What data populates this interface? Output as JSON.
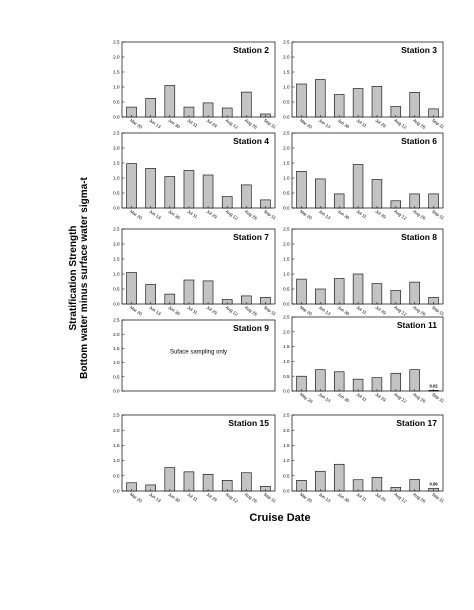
{
  "figure": {
    "ylabel_line1": "Stratification Strength",
    "ylabel_line2": "Bottom water minus surface water sigma-t",
    "xlabel": "Cruise Date"
  },
  "chart_data": [
    {
      "type": "bar",
      "title": "Station 2",
      "ylim": [
        0,
        2.5
      ],
      "yticks": [
        "0.0",
        "0.5",
        "1.0",
        "1.5",
        "2.0",
        "2.5"
      ],
      "categories": [
        "Mar 20",
        "Jun 13",
        "Jun 30",
        "Jul 11",
        "Jul 29",
        "Aug 12",
        "Aug 26",
        "Sep 11"
      ],
      "values": [
        0.33,
        0.62,
        1.05,
        0.33,
        0.47,
        0.3,
        0.83,
        0.1
      ]
    },
    {
      "type": "bar",
      "title": "Station 3",
      "ylim": [
        0,
        2.5
      ],
      "yticks": [
        "0.0",
        "0.5",
        "1.0",
        "1.5",
        "2.0",
        "2.5"
      ],
      "categories": [
        "Mar 20",
        "Jun 13",
        "Jun 30",
        "Jul 11",
        "Jul 29",
        "Aug 12",
        "Aug 26",
        "Sep 11"
      ],
      "values": [
        1.1,
        1.25,
        0.75,
        0.95,
        1.02,
        0.35,
        0.82,
        0.27
      ]
    },
    {
      "type": "bar",
      "title": "Station 4",
      "ylim": [
        0,
        2.5
      ],
      "yticks": [
        "0.0",
        "0.5",
        "1.0",
        "1.5",
        "2.0",
        "2.5"
      ],
      "categories": [
        "Mar 20",
        "Jun 13",
        "Jun 30",
        "Jul 11",
        "Jul 29",
        "Aug 12",
        "Aug 26",
        "Sep 11"
      ],
      "values": [
        1.48,
        1.32,
        1.05,
        1.25,
        1.1,
        0.38,
        0.77,
        0.27
      ]
    },
    {
      "type": "bar",
      "title": "Station 6",
      "ylim": [
        0,
        2.5
      ],
      "yticks": [
        "0.0",
        "0.5",
        "1.0",
        "1.5",
        "2.0",
        "2.5"
      ],
      "categories": [
        "Mar 20",
        "Jun 13",
        "Jun 30",
        "Jul 11",
        "Jul 29",
        "Aug 12",
        "Aug 26",
        "Sep 11"
      ],
      "values": [
        1.22,
        0.97,
        0.47,
        1.45,
        0.95,
        0.24,
        0.47,
        0.47
      ]
    },
    {
      "type": "bar",
      "title": "Station 7",
      "ylim": [
        0,
        2.5
      ],
      "yticks": [
        "0.0",
        "0.5",
        "1.0",
        "1.5",
        "2.0",
        "2.5"
      ],
      "categories": [
        "Mar 20",
        "Jun 13",
        "Jun 30",
        "Jul 11",
        "Jul 29",
        "Aug 12",
        "Aug 26",
        "Sep 11"
      ],
      "values": [
        1.05,
        0.65,
        0.33,
        0.8,
        0.77,
        0.15,
        0.27,
        0.22
      ]
    },
    {
      "type": "bar",
      "title": "Station 8",
      "ylim": [
        0,
        2.5
      ],
      "yticks": [
        "0.0",
        "0.5",
        "1.0",
        "1.5",
        "2.0",
        "2.5"
      ],
      "categories": [
        "Mar 20",
        "Jun 13",
        "Jun 30",
        "Jul 11",
        "Jul 29",
        "Aug 12",
        "Aug 26",
        "Sep 11"
      ],
      "values": [
        0.83,
        0.5,
        0.85,
        1.0,
        0.68,
        0.45,
        0.73,
        0.22
      ]
    },
    {
      "type": "bar",
      "title": "Station 9",
      "ylim": [
        0,
        2.5
      ],
      "yticks": [
        "0.0",
        "0.5",
        "1.0",
        "1.5",
        "2.0",
        "2.5"
      ],
      "categories": [],
      "values": [],
      "annotation": "Suface sampling only"
    },
    {
      "type": "bar",
      "title": "Station 11",
      "ylim": [
        0,
        2.5
      ],
      "yticks": [
        "0.0",
        "0.5",
        "1.0",
        "1.5",
        "2.0",
        "2.5"
      ],
      "categories": [
        "May 20",
        "Jun 13",
        "Jun 30",
        "Jul 11",
        "Jul 29",
        "Aug 12",
        "Aug 26",
        "Sep 11"
      ],
      "values": [
        0.5,
        0.72,
        0.65,
        0.4,
        0.45,
        0.6,
        0.72,
        0.02
      ],
      "data_labels": [
        {
          "index": 7,
          "text": "0.02"
        }
      ]
    },
    {
      "type": "bar",
      "title": "Station 15",
      "ylim": [
        0,
        2.5
      ],
      "yticks": [
        "0.0",
        "0.5",
        "1.0",
        "1.5",
        "2.0",
        "2.5"
      ],
      "categories": [
        "Mar 20",
        "Jun 13",
        "Jun 30",
        "Jul 11",
        "Jul 29",
        "Aug 12",
        "Aug 26",
        "Sep 11"
      ],
      "values": [
        0.27,
        0.2,
        0.77,
        0.63,
        0.55,
        0.35,
        0.6,
        0.15
      ]
    },
    {
      "type": "bar",
      "title": "Station 17",
      "ylim": [
        0,
        2.5
      ],
      "yticks": [
        "0.0",
        "0.5",
        "1.0",
        "1.5",
        "2.0",
        "2.5"
      ],
      "categories": [
        "Mar 20",
        "Jun 13",
        "Jun 30",
        "Jul 11",
        "Jul 29",
        "Aug 12",
        "Aug 26",
        "Sep 11"
      ],
      "values": [
        0.35,
        0.65,
        0.88,
        0.37,
        0.45,
        0.12,
        0.38,
        0.09
      ],
      "data_labels": [
        {
          "index": 7,
          "text": "0.09"
        }
      ]
    }
  ]
}
